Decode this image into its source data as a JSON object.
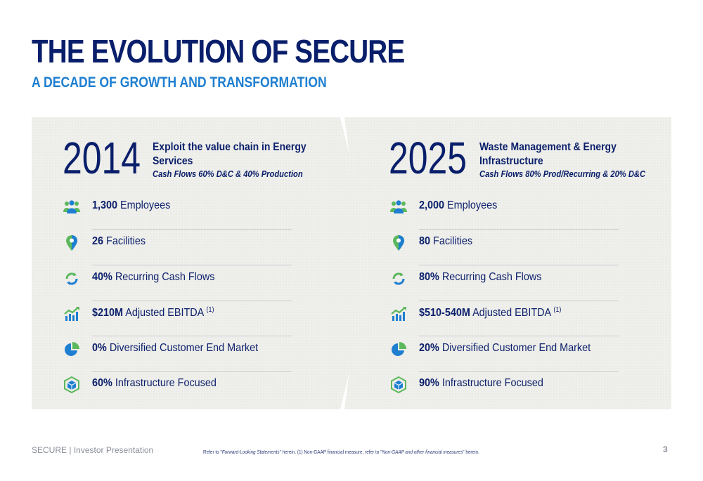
{
  "header": {
    "title": "THE EVOLUTION OF SECURE",
    "subtitle": "A DECADE OF GROWTH AND TRANSFORMATION"
  },
  "left": {
    "year": "2014",
    "headline": "Exploit the value chain in Energy Services",
    "subline": "Cash Flows 60% D&C & 40% Production",
    "metrics": [
      {
        "icon": "employees-icon",
        "value": "1,300",
        "label": "Employees",
        "sup": ""
      },
      {
        "icon": "location-pin-icon",
        "value": "26",
        "label": "Facilities",
        "sup": ""
      },
      {
        "icon": "recurring-arrows-icon",
        "value": "40%",
        "label": "Recurring Cash Flows",
        "sup": ""
      },
      {
        "icon": "growth-chart-icon",
        "value": "$210M",
        "label": "Adjusted EBITDA",
        "sup": "(1)"
      },
      {
        "icon": "pie-chart-icon",
        "value": "0%",
        "label": "Diversified Customer End Market",
        "sup": ""
      },
      {
        "icon": "infrastructure-cube-icon",
        "value": "60%",
        "label": "Infrastructure Focused",
        "sup": ""
      }
    ]
  },
  "right": {
    "year": "2025",
    "headline": "Waste Management & Energy Infrastructure",
    "subline": "Cash Flows 80% Prod/Recurring & 20% D&C",
    "metrics": [
      {
        "icon": "employees-icon",
        "value": "2,000",
        "label": "Employees",
        "sup": ""
      },
      {
        "icon": "location-pin-icon",
        "value": "80",
        "label": "Facilities",
        "sup": ""
      },
      {
        "icon": "recurring-arrows-icon",
        "value": "80%",
        "label": "Recurring Cash Flows",
        "sup": ""
      },
      {
        "icon": "growth-chart-icon",
        "value": "$510-540M",
        "label": "Adjusted EBITDA",
        "sup": "(1)"
      },
      {
        "icon": "pie-chart-icon",
        "value": "20%",
        "label": "Diversified Customer End Market",
        "sup": ""
      },
      {
        "icon": "infrastructure-cube-icon",
        "value": "90%",
        "label": "Infrastructure Focused",
        "sup": ""
      }
    ]
  },
  "footer": {
    "brand": "SECURE",
    "separator": "|",
    "doc_name": "Investor Presentation",
    "note_part1": "Refer to \"",
    "note_link1": "Forward-Looking Statements",
    "note_part2": "\" herein. (1) Non-GAAP financial measure, refer to \"",
    "note_link2": "Non-GAAP and other financial measures",
    "note_part3": "\" herein.",
    "page_number": "3"
  },
  "colors": {
    "navy": "#0a1f6b",
    "blue": "#1e7fd1",
    "green": "#5cb85c",
    "panel": "#efefeb"
  }
}
